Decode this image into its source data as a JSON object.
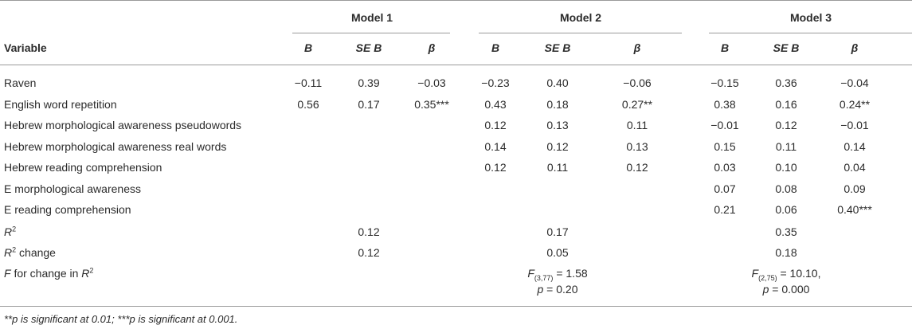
{
  "models": [
    "Model 1",
    "Model 2",
    "Model 3"
  ],
  "header": {
    "variable": "Variable",
    "b": "B",
    "seb": "SE B",
    "beta": "β"
  },
  "rows": [
    {
      "label": "Raven",
      "v": [
        "−0.11",
        "0.39",
        "−0.03",
        "−0.23",
        "0.40",
        "−0.06",
        "−0.15",
        "0.36",
        "−0.04"
      ]
    },
    {
      "label": "English word repetition",
      "v": [
        "0.56",
        "0.17",
        "0.35***",
        "0.43",
        "0.18",
        "0.27**",
        "0.38",
        "0.16",
        "0.24**"
      ]
    },
    {
      "label": "Hebrew morphological awareness pseudowords",
      "v": [
        "",
        "",
        "",
        "0.12",
        "0.13",
        "0.11",
        "−0.01",
        "0.12",
        "−0.01"
      ]
    },
    {
      "label": "Hebrew morphological awareness real words",
      "v": [
        "",
        "",
        "",
        "0.14",
        "0.12",
        "0.13",
        "0.15",
        "0.11",
        "0.14"
      ]
    },
    {
      "label": "Hebrew reading comprehension",
      "v": [
        "",
        "",
        "",
        "0.12",
        "0.11",
        "0.12",
        "0.03",
        "0.10",
        "0.04"
      ]
    },
    {
      "label": "E morphological awareness",
      "v": [
        "",
        "",
        "",
        "",
        "",
        "",
        "0.07",
        "0.08",
        "0.09"
      ]
    },
    {
      "label": "E reading comprehension",
      "v": [
        "",
        "",
        "",
        "",
        "",
        "",
        "0.21",
        "0.06",
        "0.40***"
      ]
    }
  ],
  "r2": {
    "label_base": "R",
    "label_sup": "2",
    "values": [
      "0.12",
      "0.17",
      "0.35"
    ]
  },
  "r2change": {
    "label_base": "R",
    "label_sup": "2",
    "label_rest": " change",
    "values": [
      "0.12",
      "0.05",
      "0.18"
    ]
  },
  "fchange": {
    "label_f": "F",
    "label_mid": " for change in ",
    "label_r": "R",
    "label_sup": "2",
    "m2": {
      "f": "F",
      "sub": "(3,77)",
      "eq": " = 1.58",
      "p": "p",
      "peq": " = 0.20"
    },
    "m3": {
      "f": "F",
      "sub": "(2,75)",
      "eq": " = 10.10,",
      "p": "p",
      "peq": " = 0.000"
    }
  },
  "footnote": "**p is significant at 0.01; ***p is significant at 0.001."
}
